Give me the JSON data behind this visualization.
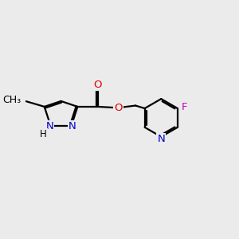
{
  "background_color": "#EBEBEB",
  "figsize": [
    3.0,
    3.0
  ],
  "dpi": 100,
  "atom_colors": {
    "C": "#000000",
    "N": "#0000CC",
    "O": "#DD0000",
    "F": "#CC00CC",
    "H": "#000000"
  },
  "bond_color": "#000000",
  "bond_width": 1.6,
  "font_size": 9.5
}
